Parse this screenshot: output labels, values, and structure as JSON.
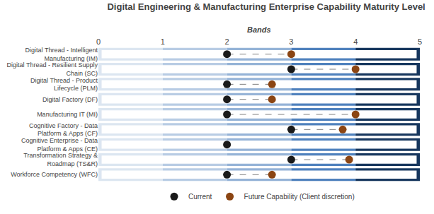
{
  "chart_data": {
    "type": "dot",
    "title": "Digital Engineering & Manufacturing Enterprise Capability Maturity Level",
    "categories": [
      "Digital Thread - Intelligent\nManufacturing (IM)",
      "Digital Thread - Resilient Supply\nChain (SC)",
      "Digital Thread - Product\nLifecycle (PLM)",
      "Digital Factory (DF)",
      "Manufacturing IT (MI)",
      "Cognitive Factory - Data\nPlatform & Apps (CF)",
      "Cognitive Enterprise - Data\nPlatform & Apps (CE)",
      "Transformation Strategy &\nRoadmap (TS&R)",
      "Workforce Competency (WFC)"
    ],
    "series": [
      {
        "name": "Current",
        "color": "#1a1a1a",
        "marker": "circle",
        "values": [
          2.0,
          3.0,
          2.0,
          2.0,
          2.0,
          3.0,
          2.0,
          3.0,
          2.0
        ]
      },
      {
        "name": "Future Capability (Client discretion)",
        "color": "#8B4513",
        "marker": "circle",
        "values": [
          3.0,
          4.0,
          2.7,
          2.7,
          4.0,
          3.8,
          null,
          3.9,
          2.7
        ]
      }
    ],
    "xlim": [
      0,
      5
    ],
    "xticks": [
      0,
      1,
      2,
      3,
      4,
      5
    ],
    "grid": false,
    "legend": "bottom",
    "annotations": [
      "Bands"
    ]
  }
}
